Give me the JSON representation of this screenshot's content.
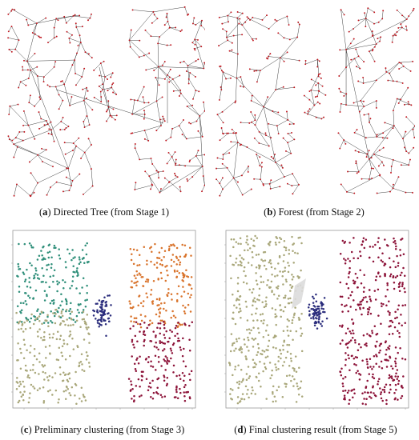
{
  "figure": {
    "panels": [
      {
        "letter": "a",
        "caption": "Directed Tree (from Stage 1)",
        "type": "tree"
      },
      {
        "letter": "b",
        "caption": "Forest (from Stage 2)",
        "type": "forest"
      },
      {
        "letter": "c",
        "caption": "Preliminary clustering (from Stage 3)",
        "type": "scatter"
      },
      {
        "letter": "d",
        "caption": "Final clustering result (from Stage 5)",
        "type": "scatter"
      }
    ],
    "colors": {
      "edge": "#2b2b2b",
      "node": "#c0141c",
      "teal": "#2f8f7a",
      "tan": "#a9a77a",
      "navy": "#2b2d7c",
      "orange": "#d9742d",
      "maroon": "#8c1238",
      "frame": "#9a9a9a"
    },
    "panel_c_clusters": [
      "teal",
      "tan",
      "navy",
      "orange",
      "maroon"
    ],
    "panel_d_clusters": [
      "tan",
      "navy",
      "maroon"
    ]
  }
}
